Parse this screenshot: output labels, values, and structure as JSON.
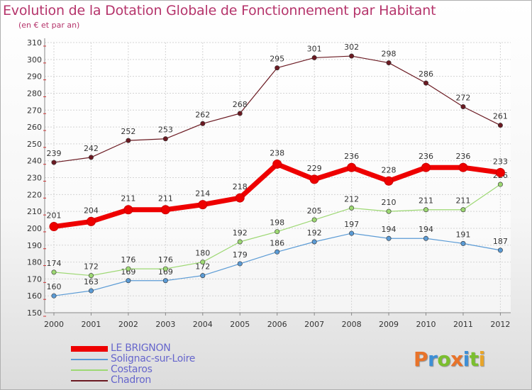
{
  "title": "Evolution de la Dotation Globale de Fonctionnement par Habitant",
  "subtitle": "(en € et par an)",
  "logo": {
    "letters": [
      "P",
      "r",
      "o",
      "x",
      "i",
      "t",
      "i"
    ],
    "colors": [
      "#e8732a",
      "#3d8fd6",
      "#7bbf2e",
      "#e8732a",
      "#3d8fd6",
      "#7bbf2e",
      "#e8a52a"
    ]
  },
  "chart_data": {
    "type": "line",
    "categories": [
      "2000",
      "2001",
      "2002",
      "2003",
      "2004",
      "2005",
      "2006",
      "2007",
      "2008",
      "2009",
      "2010",
      "2011",
      "2012"
    ],
    "ylim": [
      150,
      310
    ],
    "yticks": [
      150,
      160,
      170,
      180,
      190,
      200,
      210,
      220,
      230,
      240,
      250,
      260,
      270,
      280,
      290,
      300,
      310
    ],
    "grid": true,
    "legend_position": "bottom-left",
    "series": [
      {
        "name": "LE BRIGNON",
        "color": "#ee0000",
        "values": [
          201,
          204,
          211,
          211,
          214,
          218,
          238,
          229,
          236,
          228,
          236,
          236,
          233
        ]
      },
      {
        "name": "Solignac-sur-Loire",
        "color": "#5b9bd5",
        "values": [
          160,
          163,
          169,
          169,
          172,
          179,
          186,
          192,
          197,
          194,
          194,
          191,
          187
        ]
      },
      {
        "name": "Costaros",
        "color": "#9dd873",
        "values": [
          174,
          172,
          176,
          176,
          180,
          192,
          198,
          205,
          212,
          210,
          211,
          211,
          226
        ]
      },
      {
        "name": "Chadron",
        "color": "#6b1a22",
        "values": [
          239,
          242,
          252,
          253,
          262,
          268,
          295,
          301,
          302,
          298,
          286,
          272,
          261
        ]
      }
    ]
  }
}
